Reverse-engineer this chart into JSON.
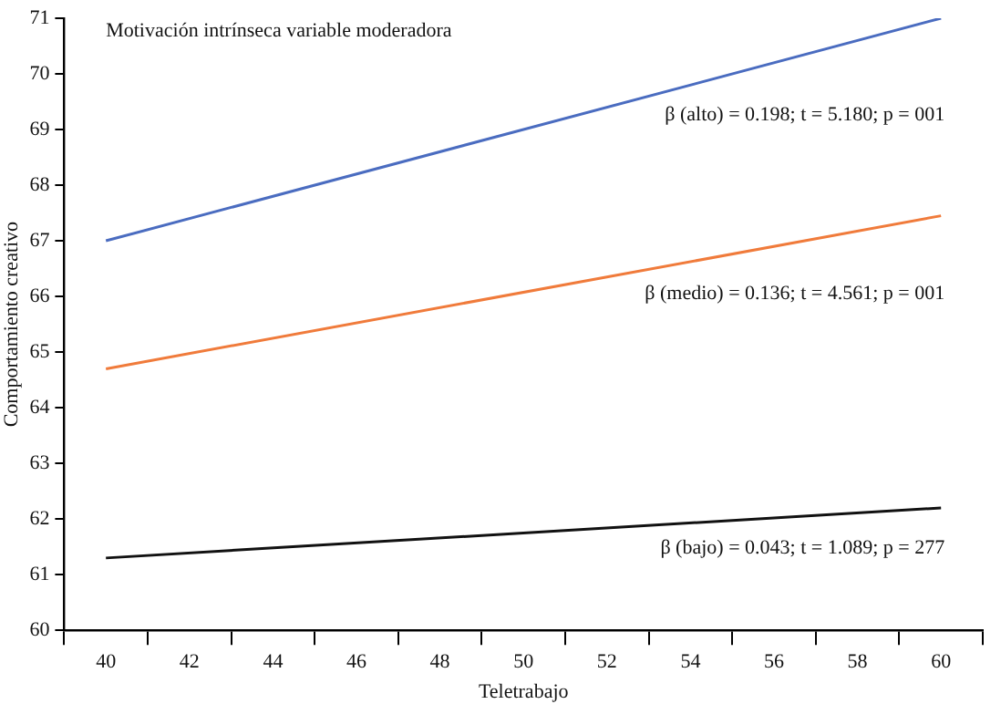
{
  "chart_data": {
    "type": "line",
    "title": "Motivación intrínseca variable moderadora",
    "xlabel": "Teletrabajo",
    "ylabel": "Comportamiento creativo",
    "categories": [
      "40",
      "42",
      "44",
      "46",
      "48",
      "50",
      "52",
      "54",
      "56",
      "58",
      "60"
    ],
    "series": [
      {
        "color": "#4a6cc0",
        "values": [
          67.0,
          null,
          null,
          null,
          null,
          null,
          null,
          null,
          null,
          null,
          71.0
        ]
      },
      {
        "color": "#f07b3b",
        "values": [
          64.7,
          null,
          null,
          null,
          null,
          null,
          null,
          null,
          null,
          null,
          67.45
        ]
      },
      {
        "color": "#111111",
        "values": [
          61.3,
          null,
          null,
          null,
          null,
          null,
          null,
          null,
          null,
          null,
          62.2
        ]
      }
    ],
    "ylim": [
      60,
      71
    ],
    "yticks": [
      60,
      61,
      62,
      63,
      64,
      65,
      66,
      67,
      68,
      69,
      70,
      71
    ],
    "annotations": [
      "β (alto) = 0.198; t = 5.180; p = 001",
      "β (medio) = 0.136; t = 4.561; p = 001",
      "β (bajo) = 0.043; t = 1.089; p = 277"
    ],
    "grid": false,
    "legend": false,
    "marker": "none",
    "line_style": "solid"
  }
}
